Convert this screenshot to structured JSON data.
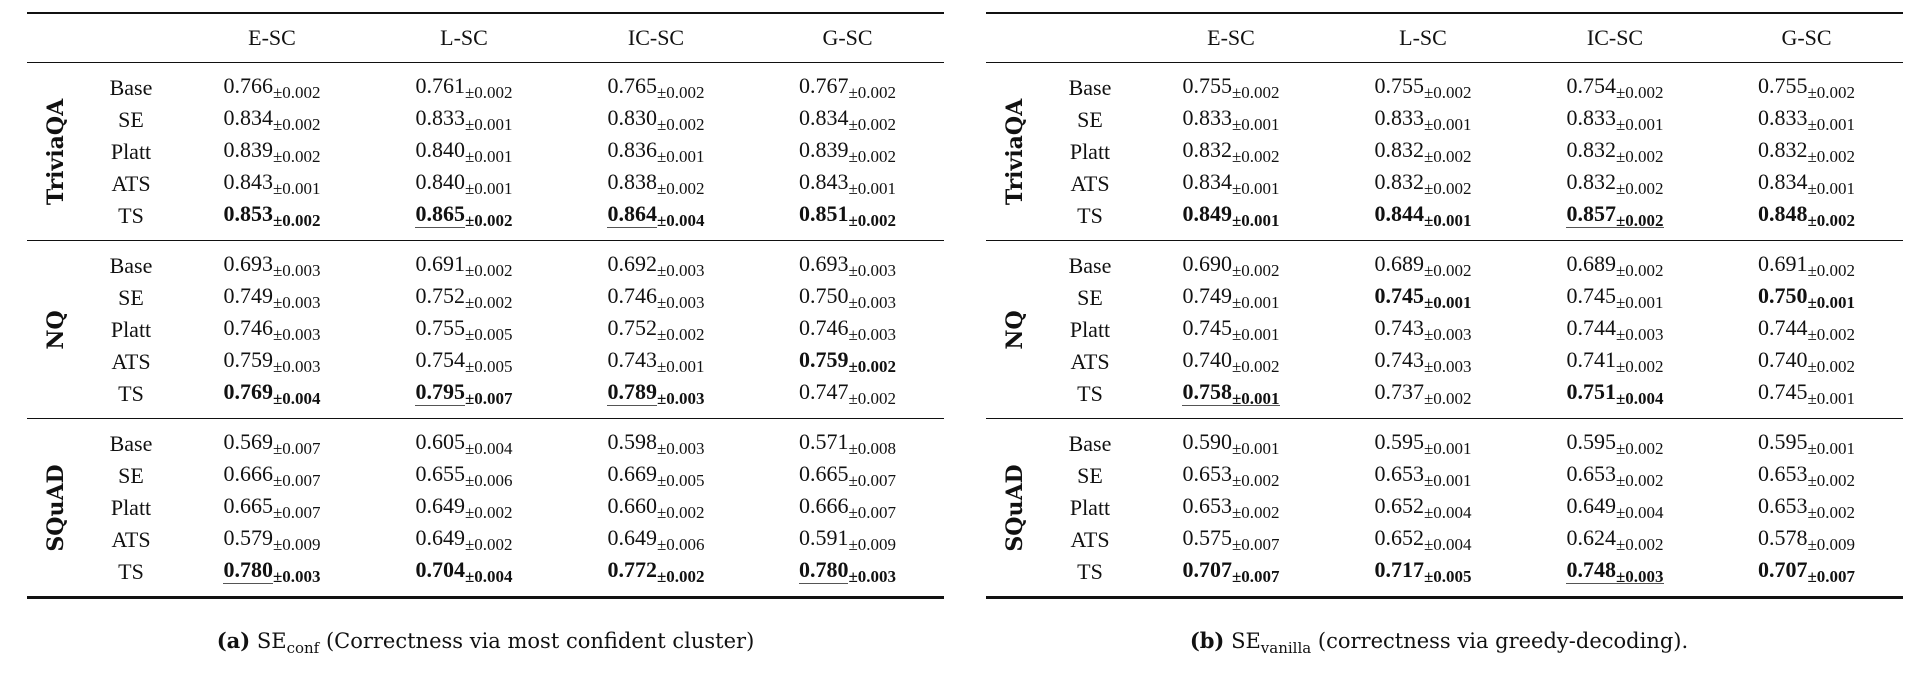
{
  "columns": [
    "E-SC",
    "L-SC",
    "IC-SC",
    "G-SC"
  ],
  "tables": [
    {
      "caption": {
        "tag": "(a)",
        "base": "SE",
        "sub": "conf",
        "text": "(Correctness via most confident cluster)"
      },
      "groups": [
        {
          "name": "TriviaQA",
          "rows": [
            {
              "method": "Base",
              "cells": [
                {
                  "v": "0.766",
                  "pm": "±0.002"
                },
                {
                  "v": "0.761",
                  "pm": "±0.002"
                },
                {
                  "v": "0.765",
                  "pm": "±0.002"
                },
                {
                  "v": "0.767",
                  "pm": "±0.002"
                }
              ]
            },
            {
              "method": "SE",
              "cells": [
                {
                  "v": "0.834",
                  "pm": "±0.002"
                },
                {
                  "v": "0.833",
                  "pm": "±0.001"
                },
                {
                  "v": "0.830",
                  "pm": "±0.002"
                },
                {
                  "v": "0.834",
                  "pm": "±0.002"
                }
              ]
            },
            {
              "method": "Platt",
              "cells": [
                {
                  "v": "0.839",
                  "pm": "±0.002"
                },
                {
                  "v": "0.840",
                  "pm": "±0.001"
                },
                {
                  "v": "0.836",
                  "pm": "±0.001"
                },
                {
                  "v": "0.839",
                  "pm": "±0.002"
                }
              ]
            },
            {
              "method": "ATS",
              "cells": [
                {
                  "v": "0.843",
                  "pm": "±0.001"
                },
                {
                  "v": "0.840",
                  "pm": "±0.001"
                },
                {
                  "v": "0.838",
                  "pm": "±0.002"
                },
                {
                  "v": "0.843",
                  "pm": "±0.001"
                }
              ]
            },
            {
              "method": "TS",
              "cells": [
                {
                  "v": "0.853",
                  "pm": "±0.002",
                  "bold": true
                },
                {
                  "v": "0.865",
                  "pm": "±0.002",
                  "bold": true,
                  "underline": "value"
                },
                {
                  "v": "0.864",
                  "pm": "±0.004",
                  "bold": true,
                  "underline": "value"
                },
                {
                  "v": "0.851",
                  "pm": "±0.002",
                  "bold": true
                }
              ]
            }
          ]
        },
        {
          "name": "NQ",
          "rows": [
            {
              "method": "Base",
              "cells": [
                {
                  "v": "0.693",
                  "pm": "±0.003"
                },
                {
                  "v": "0.691",
                  "pm": "±0.002"
                },
                {
                  "v": "0.692",
                  "pm": "±0.003"
                },
                {
                  "v": "0.693",
                  "pm": "±0.003"
                }
              ]
            },
            {
              "method": "SE",
              "cells": [
                {
                  "v": "0.749",
                  "pm": "±0.003"
                },
                {
                  "v": "0.752",
                  "pm": "±0.002"
                },
                {
                  "v": "0.746",
                  "pm": "±0.003"
                },
                {
                  "v": "0.750",
                  "pm": "±0.003"
                }
              ]
            },
            {
              "method": "Platt",
              "cells": [
                {
                  "v": "0.746",
                  "pm": "±0.003"
                },
                {
                  "v": "0.755",
                  "pm": "±0.005"
                },
                {
                  "v": "0.752",
                  "pm": "±0.002"
                },
                {
                  "v": "0.746",
                  "pm": "±0.003"
                }
              ]
            },
            {
              "method": "ATS",
              "cells": [
                {
                  "v": "0.759",
                  "pm": "±0.003"
                },
                {
                  "v": "0.754",
                  "pm": "±0.005"
                },
                {
                  "v": "0.743",
                  "pm": "±0.001"
                },
                {
                  "v": "0.759",
                  "pm": "±0.002",
                  "bold": true
                }
              ]
            },
            {
              "method": "TS",
              "cells": [
                {
                  "v": "0.769",
                  "pm": "±0.004",
                  "bold": true
                },
                {
                  "v": "0.795",
                  "pm": "±0.007",
                  "bold": true,
                  "underline": "value"
                },
                {
                  "v": "0.789",
                  "pm": "±0.003",
                  "bold": true,
                  "underline": "value"
                },
                {
                  "v": "0.747",
                  "pm": "±0.002"
                }
              ]
            }
          ]
        },
        {
          "name": "SQuAD",
          "rows": [
            {
              "method": "Base",
              "cells": [
                {
                  "v": "0.569",
                  "pm": "±0.007"
                },
                {
                  "v": "0.605",
                  "pm": "±0.004"
                },
                {
                  "v": "0.598",
                  "pm": "±0.003"
                },
                {
                  "v": "0.571",
                  "pm": "±0.008"
                }
              ]
            },
            {
              "method": "SE",
              "cells": [
                {
                  "v": "0.666",
                  "pm": "±0.007"
                },
                {
                  "v": "0.655",
                  "pm": "±0.006"
                },
                {
                  "v": "0.669",
                  "pm": "±0.005"
                },
                {
                  "v": "0.665",
                  "pm": "±0.007"
                }
              ]
            },
            {
              "method": "Platt",
              "cells": [
                {
                  "v": "0.665",
                  "pm": "±0.007"
                },
                {
                  "v": "0.649",
                  "pm": "±0.002"
                },
                {
                  "v": "0.660",
                  "pm": "±0.002"
                },
                {
                  "v": "0.666",
                  "pm": "±0.007"
                }
              ]
            },
            {
              "method": "ATS",
              "cells": [
                {
                  "v": "0.579",
                  "pm": "±0.009"
                },
                {
                  "v": "0.649",
                  "pm": "±0.002"
                },
                {
                  "v": "0.649",
                  "pm": "±0.006"
                },
                {
                  "v": "0.591",
                  "pm": "±0.009"
                }
              ]
            },
            {
              "method": "TS",
              "cells": [
                {
                  "v": "0.780",
                  "pm": "±0.003",
                  "bold": true,
                  "underline": "value"
                },
                {
                  "v": "0.704",
                  "pm": "±0.004",
                  "bold": true
                },
                {
                  "v": "0.772",
                  "pm": "±0.002",
                  "bold": true
                },
                {
                  "v": "0.780",
                  "pm": "±0.003",
                  "bold": true,
                  "underline": "value"
                }
              ]
            }
          ]
        }
      ]
    },
    {
      "caption": {
        "tag": "(b)",
        "base": "SE",
        "sub": "vanilla",
        "text": "(correctness via greedy-decoding)."
      },
      "groups": [
        {
          "name": "TriviaQA",
          "rows": [
            {
              "method": "Base",
              "cells": [
                {
                  "v": "0.755",
                  "pm": "±0.002"
                },
                {
                  "v": "0.755",
                  "pm": "±0.002"
                },
                {
                  "v": "0.754",
                  "pm": "±0.002"
                },
                {
                  "v": "0.755",
                  "pm": "±0.002"
                }
              ]
            },
            {
              "method": "SE",
              "cells": [
                {
                  "v": "0.833",
                  "pm": "±0.001"
                },
                {
                  "v": "0.833",
                  "pm": "±0.001"
                },
                {
                  "v": "0.833",
                  "pm": "±0.001"
                },
                {
                  "v": "0.833",
                  "pm": "±0.001"
                }
              ]
            },
            {
              "method": "Platt",
              "cells": [
                {
                  "v": "0.832",
                  "pm": "±0.002"
                },
                {
                  "v": "0.832",
                  "pm": "±0.002"
                },
                {
                  "v": "0.832",
                  "pm": "±0.002"
                },
                {
                  "v": "0.832",
                  "pm": "±0.002"
                }
              ]
            },
            {
              "method": "ATS",
              "cells": [
                {
                  "v": "0.834",
                  "pm": "±0.001"
                },
                {
                  "v": "0.832",
                  "pm": "±0.002"
                },
                {
                  "v": "0.832",
                  "pm": "±0.002"
                },
                {
                  "v": "0.834",
                  "pm": "±0.001"
                }
              ]
            },
            {
              "method": "TS",
              "cells": [
                {
                  "v": "0.849",
                  "pm": "±0.001",
                  "bold": true
                },
                {
                  "v": "0.844",
                  "pm": "±0.001",
                  "bold": true
                },
                {
                  "v": "0.857",
                  "pm": "±0.002",
                  "bold": true,
                  "underline": "full"
                },
                {
                  "v": "0.848",
                  "pm": "±0.002",
                  "bold": true
                }
              ]
            }
          ]
        },
        {
          "name": "NQ",
          "rows": [
            {
              "method": "Base",
              "cells": [
                {
                  "v": "0.690",
                  "pm": "±0.002"
                },
                {
                  "v": "0.689",
                  "pm": "±0.002"
                },
                {
                  "v": "0.689",
                  "pm": "±0.002"
                },
                {
                  "v": "0.691",
                  "pm": "±0.002"
                }
              ]
            },
            {
              "method": "SE",
              "cells": [
                {
                  "v": "0.749",
                  "pm": "±0.001"
                },
                {
                  "v": "0.745",
                  "pm": "±0.001",
                  "bold": true
                },
                {
                  "v": "0.745",
                  "pm": "±0.001"
                },
                {
                  "v": "0.750",
                  "pm": "±0.001",
                  "bold": true
                }
              ]
            },
            {
              "method": "Platt",
              "cells": [
                {
                  "v": "0.745",
                  "pm": "±0.001"
                },
                {
                  "v": "0.743",
                  "pm": "±0.003"
                },
                {
                  "v": "0.744",
                  "pm": "±0.003"
                },
                {
                  "v": "0.744",
                  "pm": "±0.002"
                }
              ]
            },
            {
              "method": "ATS",
              "cells": [
                {
                  "v": "0.740",
                  "pm": "±0.002"
                },
                {
                  "v": "0.743",
                  "pm": "±0.003"
                },
                {
                  "v": "0.741",
                  "pm": "±0.002"
                },
                {
                  "v": "0.740",
                  "pm": "±0.002"
                }
              ]
            },
            {
              "method": "TS",
              "cells": [
                {
                  "v": "0.758",
                  "pm": "±0.001",
                  "bold": true,
                  "underline": "full"
                },
                {
                  "v": "0.737",
                  "pm": "±0.002"
                },
                {
                  "v": "0.751",
                  "pm": "±0.004",
                  "bold": true
                },
                {
                  "v": "0.745",
                  "pm": "±0.001"
                }
              ]
            }
          ]
        },
        {
          "name": "SQuAD",
          "rows": [
            {
              "method": "Base",
              "cells": [
                {
                  "v": "0.590",
                  "pm": "±0.001"
                },
                {
                  "v": "0.595",
                  "pm": "±0.001"
                },
                {
                  "v": "0.595",
                  "pm": "±0.002"
                },
                {
                  "v": "0.595",
                  "pm": "±0.001"
                }
              ]
            },
            {
              "method": "SE",
              "cells": [
                {
                  "v": "0.653",
                  "pm": "±0.002"
                },
                {
                  "v": "0.653",
                  "pm": "±0.001"
                },
                {
                  "v": "0.653",
                  "pm": "±0.002"
                },
                {
                  "v": "0.653",
                  "pm": "±0.002"
                }
              ]
            },
            {
              "method": "Platt",
              "cells": [
                {
                  "v": "0.653",
                  "pm": "±0.002"
                },
                {
                  "v": "0.652",
                  "pm": "±0.004"
                },
                {
                  "v": "0.649",
                  "pm": "±0.004"
                },
                {
                  "v": "0.653",
                  "pm": "±0.002"
                }
              ]
            },
            {
              "method": "ATS",
              "cells": [
                {
                  "v": "0.575",
                  "pm": "±0.007"
                },
                {
                  "v": "0.652",
                  "pm": "±0.004"
                },
                {
                  "v": "0.624",
                  "pm": "±0.002"
                },
                {
                  "v": "0.578",
                  "pm": "±0.009"
                }
              ]
            },
            {
              "method": "TS",
              "cells": [
                {
                  "v": "0.707",
                  "pm": "±0.007",
                  "bold": true
                },
                {
                  "v": "0.717",
                  "pm": "±0.005",
                  "bold": true
                },
                {
                  "v": "0.748",
                  "pm": "±0.003",
                  "bold": true,
                  "underline": "full"
                },
                {
                  "v": "0.707",
                  "pm": "±0.007",
                  "bold": true
                }
              ]
            }
          ]
        }
      ]
    }
  ]
}
